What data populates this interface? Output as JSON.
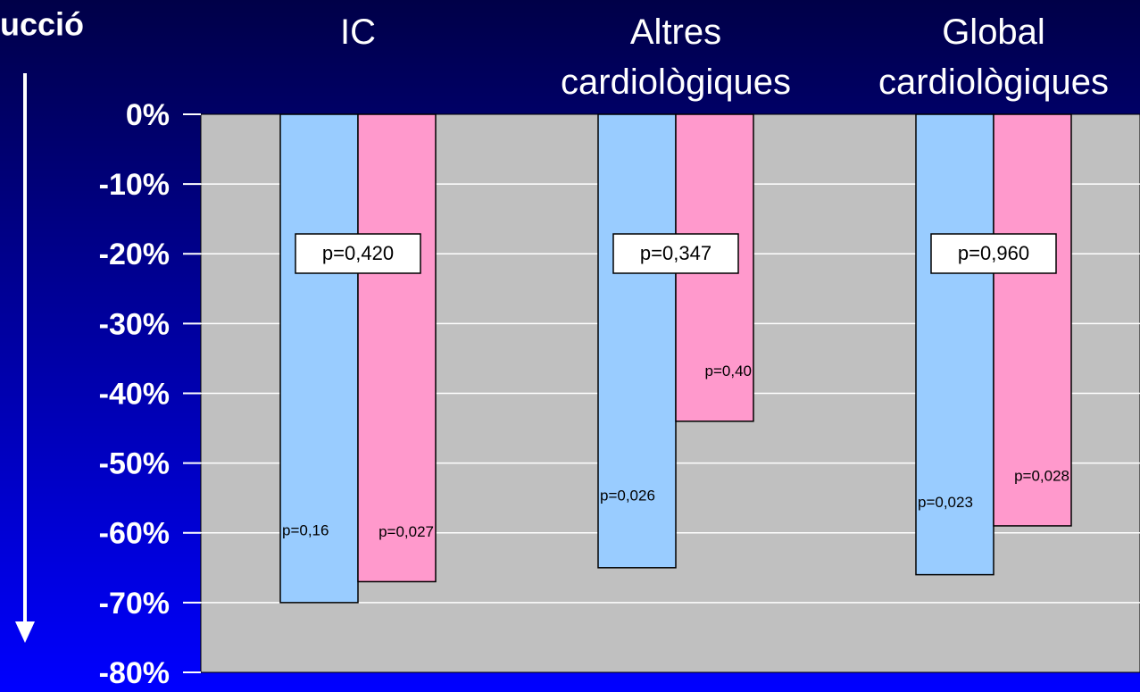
{
  "chart_data": {
    "type": "bar",
    "title": "ucció",
    "categories": [
      [
        "IC"
      ],
      [
        "Altres",
        "cardiològiques"
      ],
      [
        "Global",
        "cardiològiques"
      ]
    ],
    "series": [
      {
        "color": "#99ccff",
        "values": [
          -70,
          -65,
          -66
        ],
        "p_labels": [
          "p=0,16",
          "p=0,026",
          "p=0,023"
        ]
      },
      {
        "color": "#ff99cc",
        "values": [
          -67,
          -44,
          -59
        ],
        "p_labels": [
          "p=0,027",
          "p=0,40",
          "p=0,028"
        ]
      }
    ],
    "group_p_labels": [
      "p=0,420",
      "p=0,347",
      "p=0,960"
    ],
    "ylim": [
      -80,
      0
    ],
    "yticks": [
      {
        "value": 0,
        "label": "0%"
      },
      {
        "value": -10,
        "label": "-10%"
      },
      {
        "value": -20,
        "label": "-20%"
      },
      {
        "value": -30,
        "label": "-30%"
      },
      {
        "value": -40,
        "label": "-40%"
      },
      {
        "value": -50,
        "label": "-50%"
      },
      {
        "value": -60,
        "label": "-60%"
      },
      {
        "value": -70,
        "label": "-70%"
      },
      {
        "value": -80,
        "label": "-80%"
      }
    ],
    "grid": true
  }
}
